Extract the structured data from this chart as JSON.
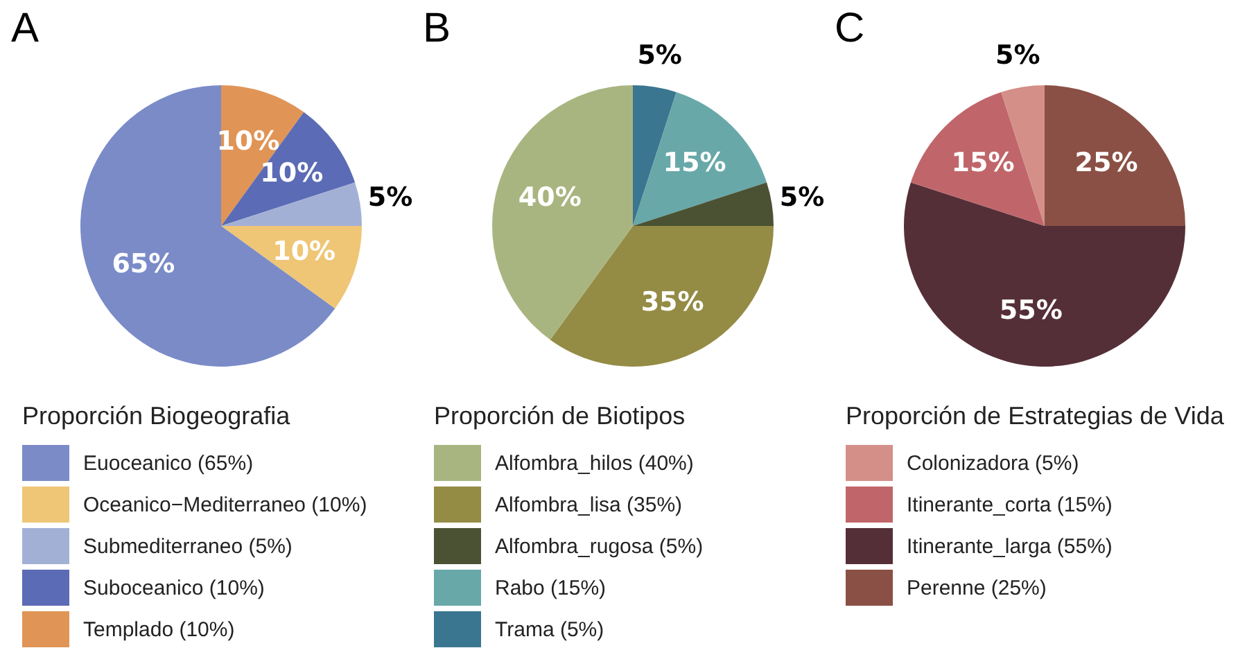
{
  "chart_data": [
    {
      "type": "pie",
      "title": "A",
      "legend_title": "Proporción Biogeografia",
      "legend": "bottom",
      "categories": [
        "Euoceanico (65%)",
        "Oceanico−Mediterraneo (10%)",
        "Submediterraneo (5%)",
        "Suboceanico (10%)",
        "Templado (10%)"
      ],
      "values": [
        65,
        10,
        5,
        10,
        10
      ],
      "colors": [
        "#7a8bc8",
        "#efc676",
        "#a3b0d6",
        "#5b6bb5",
        "#e09556"
      ],
      "value_labels": [
        "65%",
        "10%",
        "5%",
        "10%",
        "10%"
      ]
    },
    {
      "type": "pie",
      "title": "B",
      "legend_title": "Proporción de Biotipos",
      "legend": "bottom",
      "categories": [
        "Alfombra_hilos (40%)",
        "Alfombra_lisa (35%)",
        "Alfombra_rugosa (5%)",
        "Rabo (15%)",
        "Trama (5%)"
      ],
      "values": [
        40,
        35,
        5,
        15,
        5
      ],
      "colors": [
        "#a9b580",
        "#948b45",
        "#4a5233",
        "#68a8a8",
        "#3a7690"
      ],
      "value_labels": [
        "40%",
        "35%",
        "5%",
        "15%",
        "5%"
      ]
    },
    {
      "type": "pie",
      "title": "C",
      "legend_title": "Proporción de Estrategias de Vida",
      "legend": "bottom",
      "categories": [
        "Colonizadora (5%)",
        "Itinerante_corta (15%)",
        "Itinerante_larga (55%)",
        "Perenne (25%)"
      ],
      "values": [
        5,
        15,
        55,
        25
      ],
      "colors": [
        "#d48f88",
        "#c0666a",
        "#552f38",
        "#8b5045"
      ],
      "value_labels": [
        "5%",
        "15%",
        "55%",
        "25%"
      ]
    }
  ]
}
